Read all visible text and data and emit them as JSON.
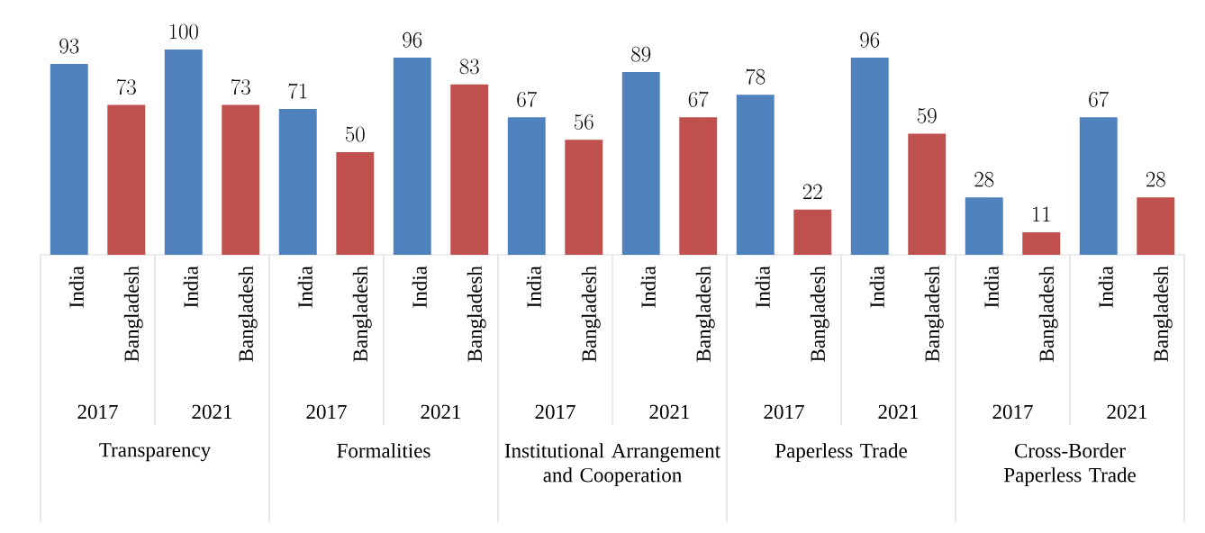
{
  "chart_data": {
    "type": "bar",
    "categories": [
      "India",
      "Bangladesh",
      "India",
      "Bangladesh",
      "India",
      "Bangladesh",
      "India",
      "Bangladesh",
      "India",
      "Bangladesh",
      "India",
      "Bangladesh",
      "India",
      "Bangladesh",
      "India",
      "Bangladesh",
      "India",
      "Bangladesh",
      "India",
      "Bangladesh"
    ],
    "values": [
      93,
      73,
      100,
      73,
      71,
      50,
      96,
      83,
      67,
      56,
      89,
      67,
      78,
      22,
      96,
      59,
      28,
      11,
      67,
      28
    ],
    "colors": [
      "#4f81bd",
      "#c0504d",
      "#4f81bd",
      "#c0504d",
      "#4f81bd",
      "#c0504d",
      "#4f81bd",
      "#c0504d",
      "#4f81bd",
      "#c0504d",
      "#4f81bd",
      "#c0504d",
      "#4f81bd",
      "#c0504d",
      "#4f81bd",
      "#c0504d",
      "#4f81bd",
      "#c0504d",
      "#4f81bd",
      "#c0504d"
    ],
    "data_labels": true,
    "annotations": [
      "2017",
      "2021",
      "2017",
      "2021",
      "2017",
      "2021",
      "2017",
      "2021",
      "2017",
      "2021",
      "Transparency",
      "Formalities",
      "Institutional Arrangement and Cooperation",
      "Paperless Trade",
      "Cross-Border Paperless Trade"
    ]
  }
}
